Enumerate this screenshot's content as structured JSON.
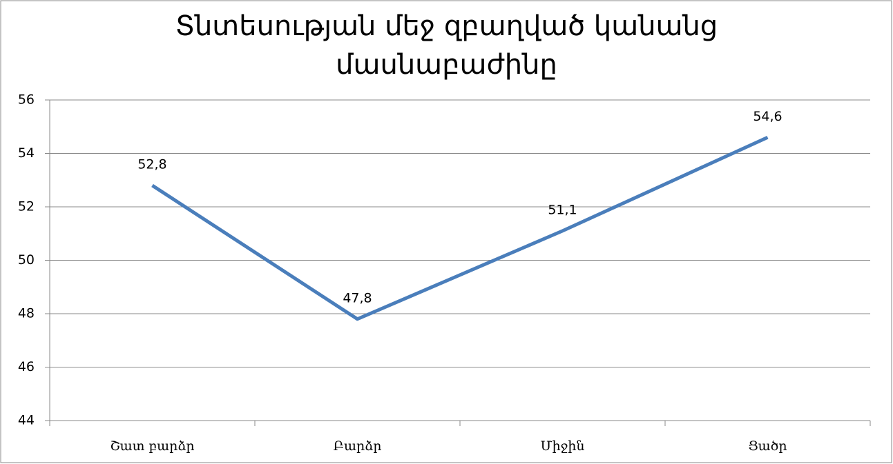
{
  "chart_data": {
    "type": "line",
    "title": "Տնտեսության մեջ զբաղված կանանց մասնաբաժինը",
    "categories": [
      "Շատ բարձր",
      "Բարձր",
      "Միջին",
      "Ցածր"
    ],
    "values": [
      52.8,
      47.8,
      51.1,
      54.6
    ],
    "value_labels": [
      "52,8",
      "47,8",
      "51,1",
      "54,6"
    ],
    "color": "#4a7ebb",
    "ylim": [
      44,
      56
    ],
    "yticks": [
      44,
      46,
      48,
      50,
      52,
      54,
      56
    ],
    "grid": true
  }
}
